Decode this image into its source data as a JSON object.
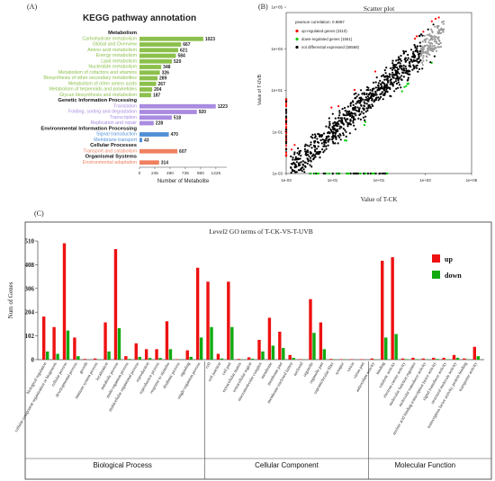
{
  "panels": {
    "a": "(A)",
    "b": "(B)",
    "c": "(C)"
  },
  "chart_data": [
    {
      "type": "bar",
      "title": "KEGG pathway annotation",
      "xlabel": "Number of Metabolite",
      "xlim": [
        0,
        1400
      ],
      "xticks": [
        0,
        245,
        490,
        735,
        980,
        1225
      ],
      "groups": [
        {
          "name": "Metabolism",
          "color": "#8cc04c",
          "categories": [
            "Carbohydrate metabolism",
            "Global and Overview",
            "Amino acid metabolism",
            "Energy metabolism",
            "Lipid metabolism",
            "Nucleotide metabolism",
            "Metabolism of cofactors and vitamins",
            "Biosynthesis of other secondary metabolites",
            "Metabolism of other amino acids",
            "Metabolism of terpenoids and polyketides",
            "Glycan biosynthesis and metabolism"
          ],
          "values": [
            1023,
            667,
            621,
            584,
            520,
            348,
            326,
            289,
            267,
            204,
            187
          ]
        },
        {
          "name": "Genetic Information Processing",
          "color": "#a98be0",
          "categories": [
            "Translation",
            "Folding, sorting and degradation",
            "Transcription",
            "Replication and repair"
          ],
          "values": [
            1223,
            920,
            518,
            228
          ]
        },
        {
          "name": "Environmental Information Processing",
          "color": "#4f8fd6",
          "categories": [
            "Signal transduction",
            "Membrane transport"
          ],
          "values": [
            470,
            43
          ]
        },
        {
          "name": "Cellular Processes",
          "color": "#f08060",
          "categories": [
            "Transport and catabolism"
          ],
          "values": [
            607
          ]
        },
        {
          "name": "Organismal Systems",
          "color": "#f08060",
          "categories": [
            "Environmental adaptation"
          ],
          "values": [
            314
          ]
        }
      ]
    },
    {
      "type": "scatter",
      "title": "Scatter plot",
      "xlabel": "Value of T-CK",
      "ylabel": "Value of T-UVB",
      "xscale": "log",
      "yscale": "log",
      "xlim": [
        0.001,
        100000
      ],
      "ylim": [
        0.001,
        100000
      ],
      "xtick_labels": [
        "1e-03",
        "1e-01",
        "1e+01",
        "1e+03",
        "1e+05"
      ],
      "ytick_labels": [
        "1e-03",
        "1e-01",
        "1e+01",
        "1e+03",
        "1e+05"
      ],
      "annotation": "pearson correlation: 0.9897",
      "legend": [
        {
          "label": "up-regulated genes (2310)",
          "color": "#ff0000"
        },
        {
          "label": "down-regulated genes (1551)",
          "color": "#00cc00"
        },
        {
          "label": "not differential expressed (58569)",
          "color": "#000000"
        }
      ]
    },
    {
      "type": "bar",
      "title": "Level2 GO terms of T-CK-VS-T-UVB",
      "ylabel": "Num of Genes",
      "ylim": [
        0,
        510
      ],
      "yticks": [
        0,
        102,
        204,
        306,
        408,
        510
      ],
      "series": [
        {
          "name": "up",
          "color": "#ee1111"
        },
        {
          "name": "down",
          "color": "#11aa11"
        }
      ],
      "groups": [
        {
          "name": "Biological Process",
          "categories": [
            {
              "label": "biological regulation",
              "up": 185,
              "down": 35
            },
            {
              "label": "cellular component organization or biogenesis",
              "up": 140,
              "down": 25
            },
            {
              "label": "cellular process",
              "up": 500,
              "down": 125
            },
            {
              "label": "developmental process",
              "up": 95,
              "down": 15
            },
            {
              "label": "growth",
              "up": 3,
              "down": 0
            },
            {
              "label": "immune system process",
              "up": 5,
              "down": 1
            },
            {
              "label": "localization",
              "up": 160,
              "down": 35
            },
            {
              "label": "metabolic process",
              "up": 475,
              "down": 135
            },
            {
              "label": "multi-organism process",
              "up": 15,
              "down": 3
            },
            {
              "label": "multicellular organismal process",
              "up": 70,
              "down": 12
            },
            {
              "label": "reproduction",
              "up": 45,
              "down": 7
            },
            {
              "label": "reproductive process",
              "up": 45,
              "down": 7
            },
            {
              "label": "response to stimulus",
              "up": 165,
              "down": 45
            },
            {
              "label": "rhythmic process",
              "up": 2,
              "down": 1
            },
            {
              "label": "signaling",
              "up": 40,
              "down": 12
            },
            {
              "label": "single-organism process",
              "up": 395,
              "down": 95
            }
          ]
        },
        {
          "name": "Cellular Component",
          "categories": [
            {
              "label": "cell",
              "up": 335,
              "down": 140
            },
            {
              "label": "cell junction",
              "up": 25,
              "down": 5
            },
            {
              "label": "cell part",
              "up": 335,
              "down": 140
            },
            {
              "label": "extracellular matrix",
              "up": 3,
              "down": 1
            },
            {
              "label": "extracellular region",
              "up": 10,
              "down": 4
            },
            {
              "label": "macromolecular complex",
              "up": 85,
              "down": 35
            },
            {
              "label": "membrane",
              "up": 180,
              "down": 60
            },
            {
              "label": "membrane part",
              "up": 120,
              "down": 50
            },
            {
              "label": "membrane-enclosed lumen",
              "up": 20,
              "down": 8
            },
            {
              "label": "nucleoid",
              "up": 2,
              "down": 1
            },
            {
              "label": "organelle",
              "up": 260,
              "down": 115
            },
            {
              "label": "organelle part",
              "up": 160,
              "down": 45
            },
            {
              "label": "supramolecular fiber",
              "up": 3,
              "down": 1
            },
            {
              "label": "synapse",
              "up": 2,
              "down": 1
            },
            {
              "label": "virion",
              "up": 2,
              "down": 0
            },
            {
              "label": "virion part",
              "up": 2,
              "down": 0
            }
          ]
        },
        {
          "name": "Molecular Function",
          "categories": [
            {
              "label": "antioxidant activity",
              "up": 5,
              "down": 1
            },
            {
              "label": "binding",
              "up": 425,
              "down": 95
            },
            {
              "label": "catalytic activity",
              "up": 440,
              "down": 110
            },
            {
              "label": "electron carrier activity",
              "up": 5,
              "down": 2
            },
            {
              "label": "molecular function regulator",
              "up": 8,
              "down": 2
            },
            {
              "label": "molecular transducer activity",
              "up": 5,
              "down": 1
            },
            {
              "label": "nucleic acid binding transcription factor activity",
              "up": 8,
              "down": 3
            },
            {
              "label": "signal transducer activity",
              "up": 8,
              "down": 2
            },
            {
              "label": "structural molecule activity",
              "up": 20,
              "down": 8
            },
            {
              "label": "transcription factor activity, protein binding",
              "up": 5,
              "down": 1
            },
            {
              "label": "transporter activity",
              "up": 55,
              "down": 15
            }
          ]
        }
      ]
    }
  ]
}
